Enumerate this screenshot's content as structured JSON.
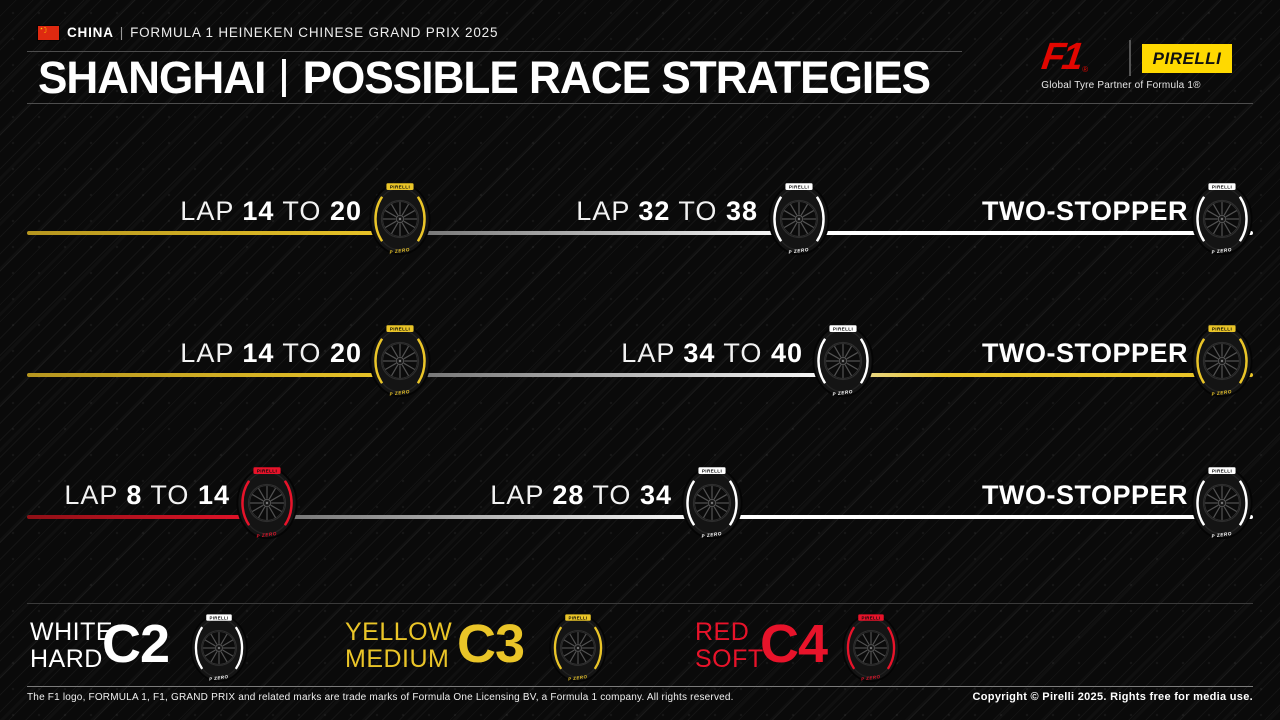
{
  "header": {
    "country": "CHINA",
    "separator": "|",
    "event": "FORMULA 1 HEINEKEN CHINESE GRAND PRIX 2025",
    "title_location": "SHANGHAI",
    "title_text": "POSSIBLE RACE STRATEGIES"
  },
  "branding": {
    "f1_logo": "F1",
    "f1_reg": "®",
    "pirelli_logo": "PIRELLI",
    "tagline": "Global Tyre Partner of Formula 1®"
  },
  "tyre": {
    "brand": "PIRELLI",
    "model": "P ZERO"
  },
  "colors": {
    "hard": "#ffffff",
    "medium": "#eac528",
    "soft": "#e8132a",
    "accent_red": "#e10600",
    "pirelli_yellow": "#ffd900",
    "background": "#0a0a0a"
  },
  "strategies": [
    {
      "stints": [
        {
          "lap_word": "LAP",
          "from": "14",
          "to_word": "TO",
          "to": "20",
          "compound": "medium"
        },
        {
          "lap_word": "LAP",
          "from": "32",
          "to_word": "TO",
          "to": "38",
          "compound": "hard"
        },
        {
          "label": "TWO-STOPPER",
          "compound": "hard"
        }
      ]
    },
    {
      "stints": [
        {
          "lap_word": "LAP",
          "from": "14",
          "to_word": "TO",
          "to": "20",
          "compound": "medium"
        },
        {
          "lap_word": "LAP",
          "from": "34",
          "to_word": "TO",
          "to": "40",
          "compound": "hard"
        },
        {
          "label": "TWO-STOPPER",
          "compound": "medium"
        }
      ]
    },
    {
      "stints": [
        {
          "lap_word": "LAP",
          "from": "8",
          "to_word": "TO",
          "to": "14",
          "compound": "soft"
        },
        {
          "lap_word": "LAP",
          "from": "28",
          "to_word": "TO",
          "to": "34",
          "compound": "hard"
        },
        {
          "label": "TWO-STOPPER",
          "compound": "hard"
        }
      ]
    }
  ],
  "legend": [
    {
      "color_word": "WHITE",
      "compound_word": "HARD",
      "code": "C2",
      "compound": "hard"
    },
    {
      "color_word": "YELLOW",
      "compound_word": "MEDIUM",
      "code": "C3",
      "compound": "medium"
    },
    {
      "color_word": "RED",
      "compound_word": "SOFT",
      "code": "C4",
      "compound": "soft"
    }
  ],
  "footer": {
    "left": "The F1 logo, FORMULA 1, F1, GRAND PRIX and related marks are trade marks of Formula One Licensing BV, a Formula 1 company. All rights reserved.",
    "right": "Copyright © Pirelli 2025. Rights free for media use."
  }
}
